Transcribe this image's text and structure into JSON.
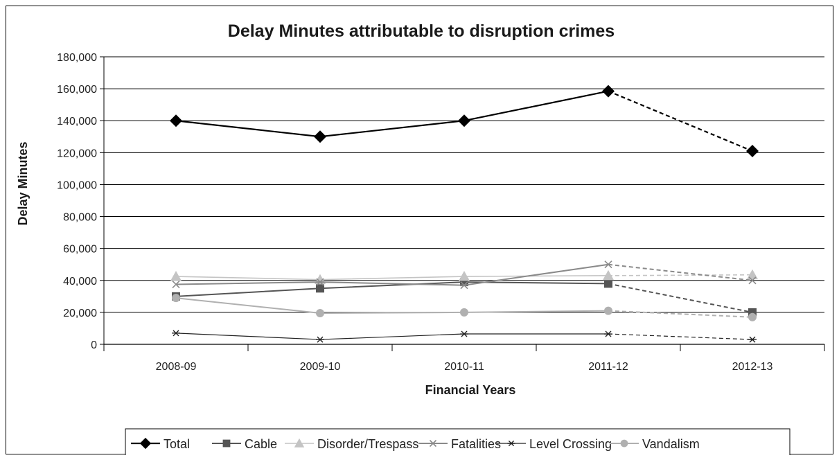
{
  "chart_data": {
    "type": "line",
    "title": "Delay Minutes attributable to disruption crimes",
    "xlabel": "Financial Years",
    "ylabel": "Delay Minutes",
    "categories": [
      "2008-09",
      "2009-10",
      "2010-11",
      "2011-12",
      "2012-13"
    ],
    "ylim": [
      0,
      180000
    ],
    "yticks": [
      0,
      20000,
      40000,
      60000,
      80000,
      100000,
      120000,
      140000,
      160000,
      180000
    ],
    "ytick_labels": [
      "0",
      "20,000",
      "40,000",
      "60,000",
      "80,000",
      "100,000",
      "120,000",
      "140,000",
      "160,000",
      "180,000"
    ],
    "grid": true,
    "legend_position": "bottom",
    "projected_last_segment": true,
    "series": [
      {
        "name": "Total",
        "values": [
          140000,
          130000,
          140000,
          158500,
          121000
        ],
        "color": "#000000",
        "marker": "diamond"
      },
      {
        "name": "Cable",
        "values": [
          30000,
          35000,
          39000,
          38000,
          20000
        ],
        "color": "#555555",
        "marker": "square"
      },
      {
        "name": "Disorder/Trespass",
        "values": [
          42500,
          40500,
          42500,
          43000,
          43500
        ],
        "color": "#c4c4c4",
        "marker": "triangle"
      },
      {
        "name": "Fatalities",
        "values": [
          37500,
          39000,
          37000,
          50000,
          40000
        ],
        "color": "#8a8a8a",
        "marker": "x"
      },
      {
        "name": "Level Crossing",
        "values": [
          7000,
          3000,
          6500,
          6500,
          3000
        ],
        "color": "#222222",
        "marker": "star"
      },
      {
        "name": "Vandalism",
        "values": [
          29000,
          19500,
          20000,
          21000,
          17000
        ],
        "color": "#b0b0b0",
        "marker": "circle"
      }
    ]
  }
}
